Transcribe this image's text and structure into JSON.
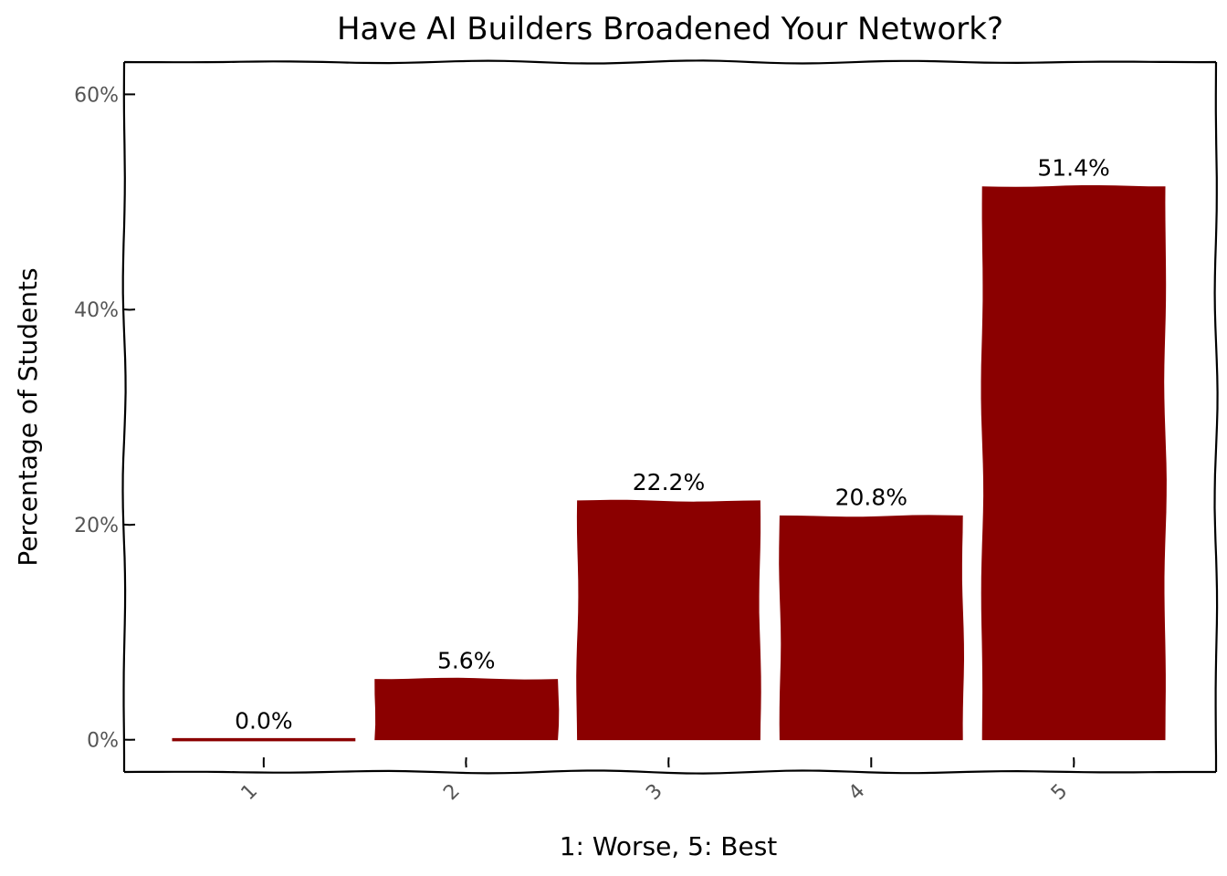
{
  "chart_data": {
    "type": "bar",
    "title": "Have AI Builders Broadened Your Network?",
    "xlabel": "1: Worse, 5: Best",
    "ylabel": "Percentage of Students",
    "categories": [
      "1",
      "2",
      "3",
      "4",
      "5"
    ],
    "values": [
      0.0,
      5.6,
      22.2,
      20.8,
      51.4
    ],
    "value_labels": [
      "0.0%",
      "5.6%",
      "22.2%",
      "20.8%",
      "51.4%"
    ],
    "ylim": [
      -3,
      63
    ],
    "yticks": [
      0,
      20,
      40,
      60
    ],
    "ytick_labels": [
      "0%",
      "20%",
      "40%",
      "60%"
    ],
    "bar_color": "#8b0000",
    "grid": false,
    "legend": "none",
    "style": "hand-drawn"
  }
}
